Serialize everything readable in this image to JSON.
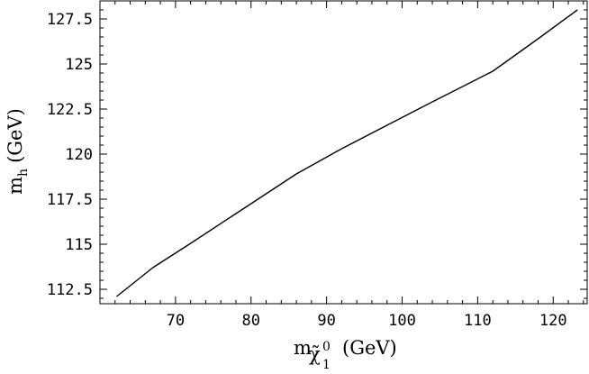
{
  "chart_data": {
    "type": "line",
    "title": "",
    "xlabel": {
      "base": "m",
      "subscript_symbol": "χ̃",
      "subscript_index": "1",
      "superscript": "0",
      "unit": "(GeV)"
    },
    "ylabel": {
      "base": "m",
      "subscript": "h",
      "unit": "(GeV)"
    },
    "xlim": [
      60,
      124.5
    ],
    "ylim": [
      111.7,
      128.5
    ],
    "xticks": [
      70,
      80,
      90,
      100,
      110,
      120
    ],
    "xtick_labels": [
      "70",
      "80",
      "90",
      "100",
      "110",
      "120"
    ],
    "yticks": [
      112.5,
      115,
      117.5,
      120,
      122.5,
      125,
      127.5
    ],
    "ytick_labels": [
      "112.5",
      "115",
      "117.5",
      "120",
      "122.5",
      "125",
      "127.5"
    ],
    "grid": false,
    "legend": null,
    "series": [
      {
        "x": [
          62.2,
          67,
          72,
          78,
          86,
          92,
          98,
          104,
          112,
          118,
          123.2
        ],
        "y": [
          112.1,
          113.7,
          115.05,
          116.7,
          118.9,
          120.3,
          121.6,
          122.9,
          124.6,
          126.4,
          128.0
        ]
      }
    ]
  }
}
